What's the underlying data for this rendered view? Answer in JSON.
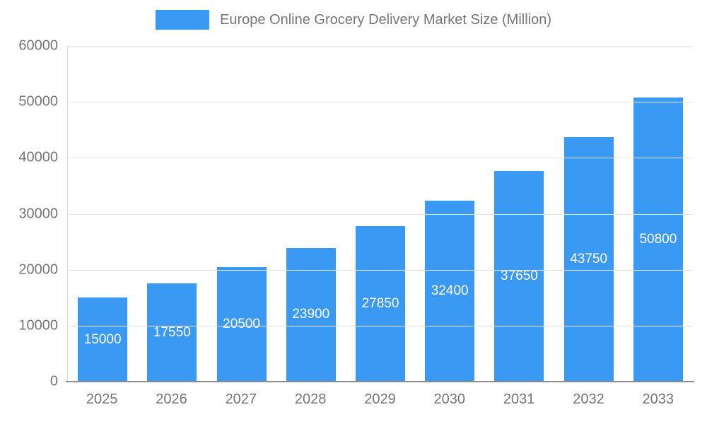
{
  "chart_data": {
    "type": "bar",
    "title": "Europe Online Grocery Delivery Market Size (Million)",
    "categories": [
      "2025",
      "2026",
      "2027",
      "2028",
      "2029",
      "2030",
      "2031",
      "2032",
      "2033"
    ],
    "values": [
      15000,
      17550,
      20500,
      23900,
      27850,
      32400,
      37650,
      43750,
      50800
    ],
    "xlabel": "",
    "ylabel": "",
    "ylim": [
      0,
      60000
    ],
    "ytick_step": 10000,
    "ytick_labels": [
      "0",
      "10000",
      "20000",
      "30000",
      "40000",
      "50000",
      "60000"
    ],
    "grid": true,
    "legend_position": "top",
    "bar_color": "#3a99f2",
    "value_label_color": "#ffffff",
    "axis_text_color": "#757575"
  }
}
